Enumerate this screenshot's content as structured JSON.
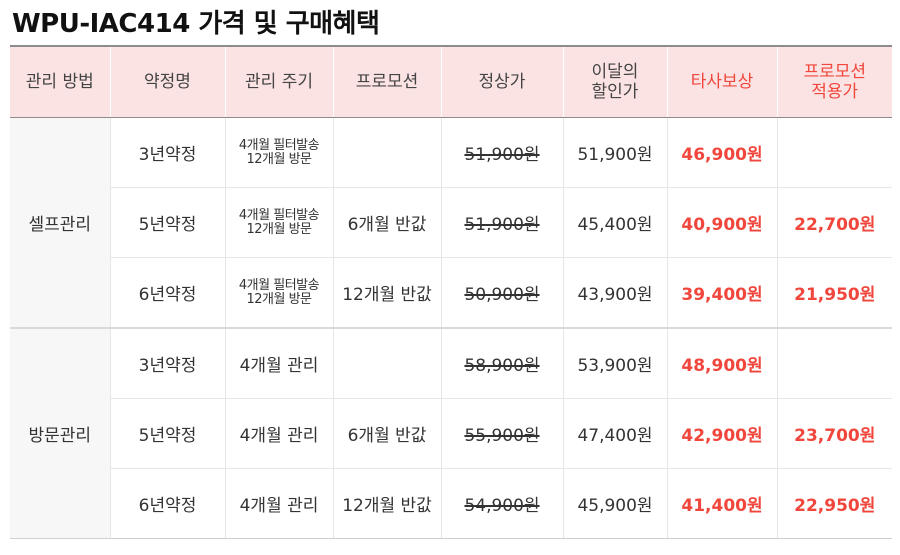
{
  "title": "WPU-IAC414 가격 및 구매혜택",
  "colors": {
    "header_bg": "#fbe3e3",
    "accent": "#f0463c",
    "border": "#e6e6e6"
  },
  "table": {
    "headers": [
      {
        "lines": [
          "관리 방법"
        ],
        "accent": false
      },
      {
        "lines": [
          "약정명"
        ],
        "accent": false
      },
      {
        "lines": [
          "관리 주기"
        ],
        "accent": false
      },
      {
        "lines": [
          "프로모션"
        ],
        "accent": false
      },
      {
        "lines": [
          "정상가"
        ],
        "accent": false
      },
      {
        "lines": [
          "이달의",
          "할인가"
        ],
        "accent": false
      },
      {
        "lines": [
          "타사보상"
        ],
        "accent": true
      },
      {
        "lines": [
          "프로모션",
          "적용가"
        ],
        "accent": true
      }
    ],
    "groups": [
      {
        "method": "셀프관리",
        "rows": [
          {
            "plan": "3년약정",
            "cycle": [
              "4개월 필터발송",
              "12개월 방문"
            ],
            "promo": "",
            "regular": "51,900원",
            "monthly": "51,900원",
            "trade_in": "46,900원",
            "promo_price": ""
          },
          {
            "plan": "5년약정",
            "cycle": [
              "4개월 필터발송",
              "12개월 방문"
            ],
            "promo": "6개월 반값",
            "regular": "51,900원",
            "monthly": "45,400원",
            "trade_in": "40,900원",
            "promo_price": "22,700원"
          },
          {
            "plan": "6년약정",
            "cycle": [
              "4개월 필터발송",
              "12개월 방문"
            ],
            "promo": "12개월 반값",
            "regular": "50,900원",
            "monthly": "43,900원",
            "trade_in": "39,400원",
            "promo_price": "21,950원"
          }
        ]
      },
      {
        "method": "방문관리",
        "rows": [
          {
            "plan": "3년약정",
            "cycle": [
              "4개월 관리"
            ],
            "promo": "",
            "regular": "58,900원",
            "monthly": "53,900원",
            "trade_in": "48,900원",
            "promo_price": ""
          },
          {
            "plan": "5년약정",
            "cycle": [
              "4개월 관리"
            ],
            "promo": "6개월 반값",
            "regular": "55,900원",
            "monthly": "47,400원",
            "trade_in": "42,900원",
            "promo_price": "23,700원"
          },
          {
            "plan": "6년약정",
            "cycle": [
              "4개월 관리"
            ],
            "promo": "12개월 반값",
            "regular": "54,900원",
            "monthly": "45,900원",
            "trade_in": "41,400원",
            "promo_price": "22,950원"
          }
        ]
      }
    ]
  }
}
